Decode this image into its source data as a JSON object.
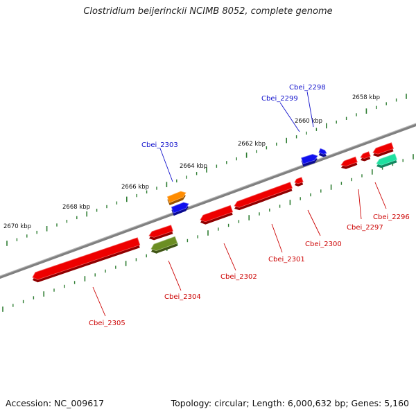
{
  "title": "Clostridium beijerinckii NCIMB 8052, complete genome",
  "footer": {
    "accession": "Accession: NC_009617",
    "summary": "Topology: circular; Length: 6,000,632 bp; Genes: 5,160"
  },
  "kbp_labels": [
    "2670 kbp",
    "2668 kbp",
    "2666 kbp",
    "2664 kbp",
    "2662 kbp",
    "2660 kbp",
    "2658 kbp"
  ],
  "gene_labels": [
    {
      "id": "Cbei_2298",
      "strand": "plus"
    },
    {
      "id": "Cbei_2299",
      "strand": "plus"
    },
    {
      "id": "Cbei_2303",
      "strand": "plus"
    },
    {
      "id": "Cbei_2296",
      "strand": "minus"
    },
    {
      "id": "Cbei_2297",
      "strand": "minus"
    },
    {
      "id": "Cbei_2300",
      "strand": "minus"
    },
    {
      "id": "Cbei_2301",
      "strand": "minus"
    },
    {
      "id": "Cbei_2302",
      "strand": "minus"
    },
    {
      "id": "Cbei_2304",
      "strand": "minus"
    },
    {
      "id": "Cbei_2305",
      "strand": "minus"
    }
  ],
  "colors": {
    "backbone": "#808080",
    "tick": "#2e7d32",
    "plus_label": "#1010cc",
    "minus_label": "#cc0000",
    "gene_red": "#ee0000",
    "gene_blue": "#1010ee",
    "gene_orange": "#ff8c00",
    "gene_olive": "#6b8e23",
    "gene_teal": "#20e0a0"
  }
}
